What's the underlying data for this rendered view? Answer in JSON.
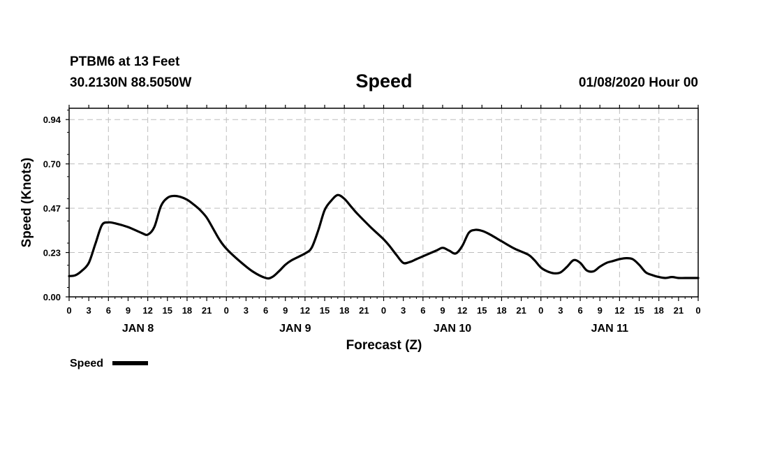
{
  "header": {
    "station": "PTBM6 at 13 Feet",
    "coords": "30.2130N 88.5050W",
    "title": "Speed",
    "run": "01/08/2020 Hour 00"
  },
  "chart_data": {
    "type": "line",
    "title": "Speed",
    "ylabel": "Speed (Knots)",
    "xlabel": "Forecast (Z)",
    "ylim": [
      0,
      1.0
    ],
    "xlim": [
      0,
      96
    ],
    "y_ticks": [
      "0.00",
      "0.23",
      "0.47",
      "0.70",
      "0.94"
    ],
    "y_tick_values": [
      0,
      0.235,
      0.47,
      0.705,
      0.94
    ],
    "x_tick_labels": [
      "0",
      "3",
      "6",
      "9",
      "12",
      "15",
      "18",
      "21",
      "0",
      "3",
      "6",
      "9",
      "12",
      "15",
      "18",
      "21",
      "0",
      "3",
      "6",
      "9",
      "12",
      "15",
      "18",
      "21",
      "0",
      "3",
      "6",
      "9",
      "12",
      "15",
      "18",
      "21",
      "0"
    ],
    "day_labels": [
      "JAN 8",
      "JAN 9",
      "JAN 10",
      "JAN 11"
    ],
    "grid": true,
    "legend": "bottom-left",
    "series": [
      {
        "name": "Speed",
        "color": "#000000",
        "x": [
          0,
          1,
          2,
          3,
          4,
          5,
          6,
          7,
          9,
          11,
          12,
          13,
          14,
          15,
          16,
          17,
          18,
          19,
          20,
          21,
          22,
          23,
          24,
          26,
          28,
          30,
          31,
          32,
          33,
          34,
          36,
          37,
          38,
          39,
          40,
          41,
          42,
          43,
          44,
          46,
          48,
          49,
          50,
          51,
          52,
          53,
          54,
          56,
          57,
          58,
          59,
          60,
          61,
          62,
          63,
          64,
          66,
          68,
          70,
          71,
          72,
          73,
          74,
          75,
          76,
          77,
          78,
          79,
          80,
          81,
          82,
          83,
          84,
          85,
          86,
          87,
          88,
          89,
          90,
          91,
          92,
          93,
          94,
          96
        ],
        "y": [
          0.11,
          0.115,
          0.14,
          0.18,
          0.28,
          0.38,
          0.395,
          0.39,
          0.37,
          0.34,
          0.33,
          0.37,
          0.48,
          0.525,
          0.535,
          0.53,
          0.515,
          0.49,
          0.46,
          0.42,
          0.36,
          0.3,
          0.255,
          0.19,
          0.135,
          0.1,
          0.105,
          0.135,
          0.17,
          0.195,
          0.23,
          0.26,
          0.35,
          0.46,
          0.51,
          0.54,
          0.52,
          0.48,
          0.44,
          0.37,
          0.305,
          0.265,
          0.22,
          0.18,
          0.185,
          0.2,
          0.215,
          0.245,
          0.26,
          0.245,
          0.23,
          0.27,
          0.34,
          0.355,
          0.35,
          0.335,
          0.295,
          0.255,
          0.225,
          0.195,
          0.155,
          0.135,
          0.125,
          0.13,
          0.16,
          0.195,
          0.18,
          0.14,
          0.135,
          0.16,
          0.18,
          0.19,
          0.2,
          0.205,
          0.2,
          0.17,
          0.13,
          0.115,
          0.105,
          0.1,
          0.105,
          0.1,
          0.1,
          0.1
        ]
      }
    ]
  }
}
